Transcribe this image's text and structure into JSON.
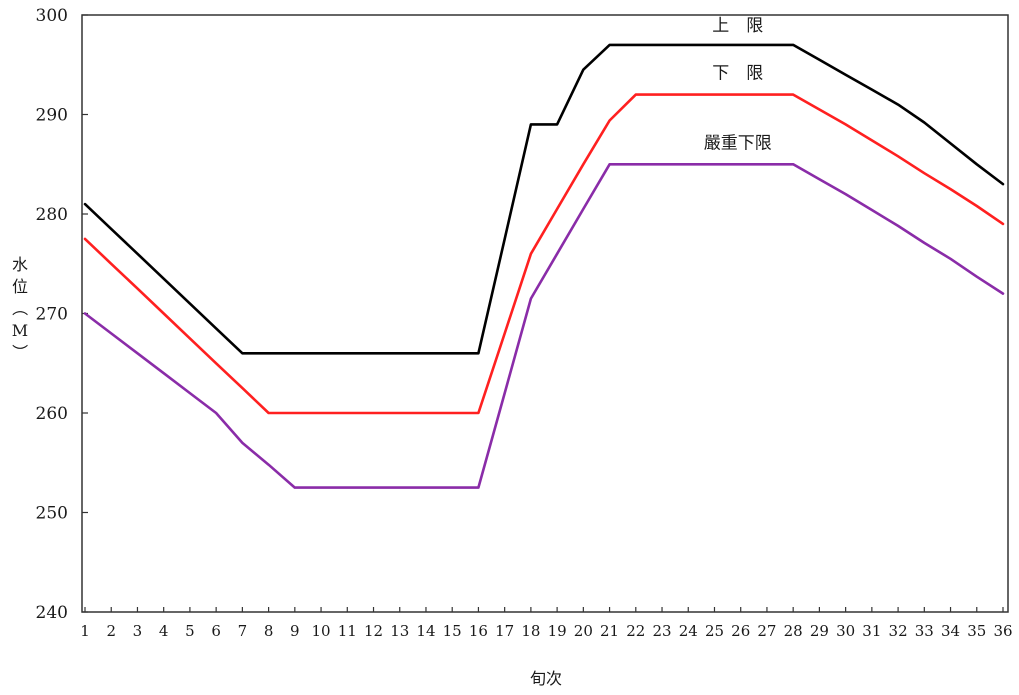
{
  "chart_data": {
    "type": "line",
    "title": "",
    "xlabel": "旬次",
    "ylabel": "水位（M）",
    "ylim": [
      240,
      300
    ],
    "yticks": [
      240,
      250,
      260,
      270,
      280,
      290,
      300
    ],
    "x": [
      1,
      2,
      3,
      4,
      5,
      6,
      7,
      8,
      9,
      10,
      11,
      12,
      13,
      14,
      15,
      16,
      17,
      18,
      19,
      20,
      21,
      22,
      23,
      24,
      25,
      26,
      27,
      28,
      29,
      30,
      31,
      32,
      33,
      34,
      35,
      36
    ],
    "grid": false,
    "legend": "none",
    "series": [
      {
        "name": "上　限",
        "color": "#000000",
        "values": [
          281,
          278.5,
          276,
          273.5,
          271,
          268.5,
          266,
          266,
          266,
          266,
          266,
          266,
          266,
          266,
          266,
          266,
          277.5,
          289,
          289,
          294.5,
          297,
          297,
          297,
          297,
          297,
          297,
          297,
          297,
          295.5,
          294,
          292.5,
          291,
          289.2,
          287.1,
          285,
          283
        ]
      },
      {
        "name": "下　限",
        "color": "#ff2020",
        "values": [
          277.5,
          275,
          272.5,
          270,
          267.5,
          265,
          262.5,
          260,
          260,
          260,
          260,
          260,
          260,
          260,
          260,
          260,
          268,
          276,
          280.5,
          285,
          289.4,
          292,
          292,
          292,
          292,
          292,
          292,
          292,
          290.5,
          289,
          287.4,
          285.8,
          284.1,
          282.5,
          280.8,
          279
        ]
      },
      {
        "name": "嚴重下限",
        "color": "#8a2ca8",
        "values": [
          270,
          268,
          266,
          264,
          262,
          260,
          257,
          254.8,
          252.5,
          252.5,
          252.5,
          252.5,
          252.5,
          252.5,
          252.5,
          252.5,
          262,
          271.5,
          276,
          280.5,
          285,
          285,
          285,
          285,
          285,
          285,
          285,
          285,
          283.5,
          282,
          280.4,
          278.8,
          277.1,
          275.5,
          273.7,
          272
        ]
      }
    ]
  }
}
